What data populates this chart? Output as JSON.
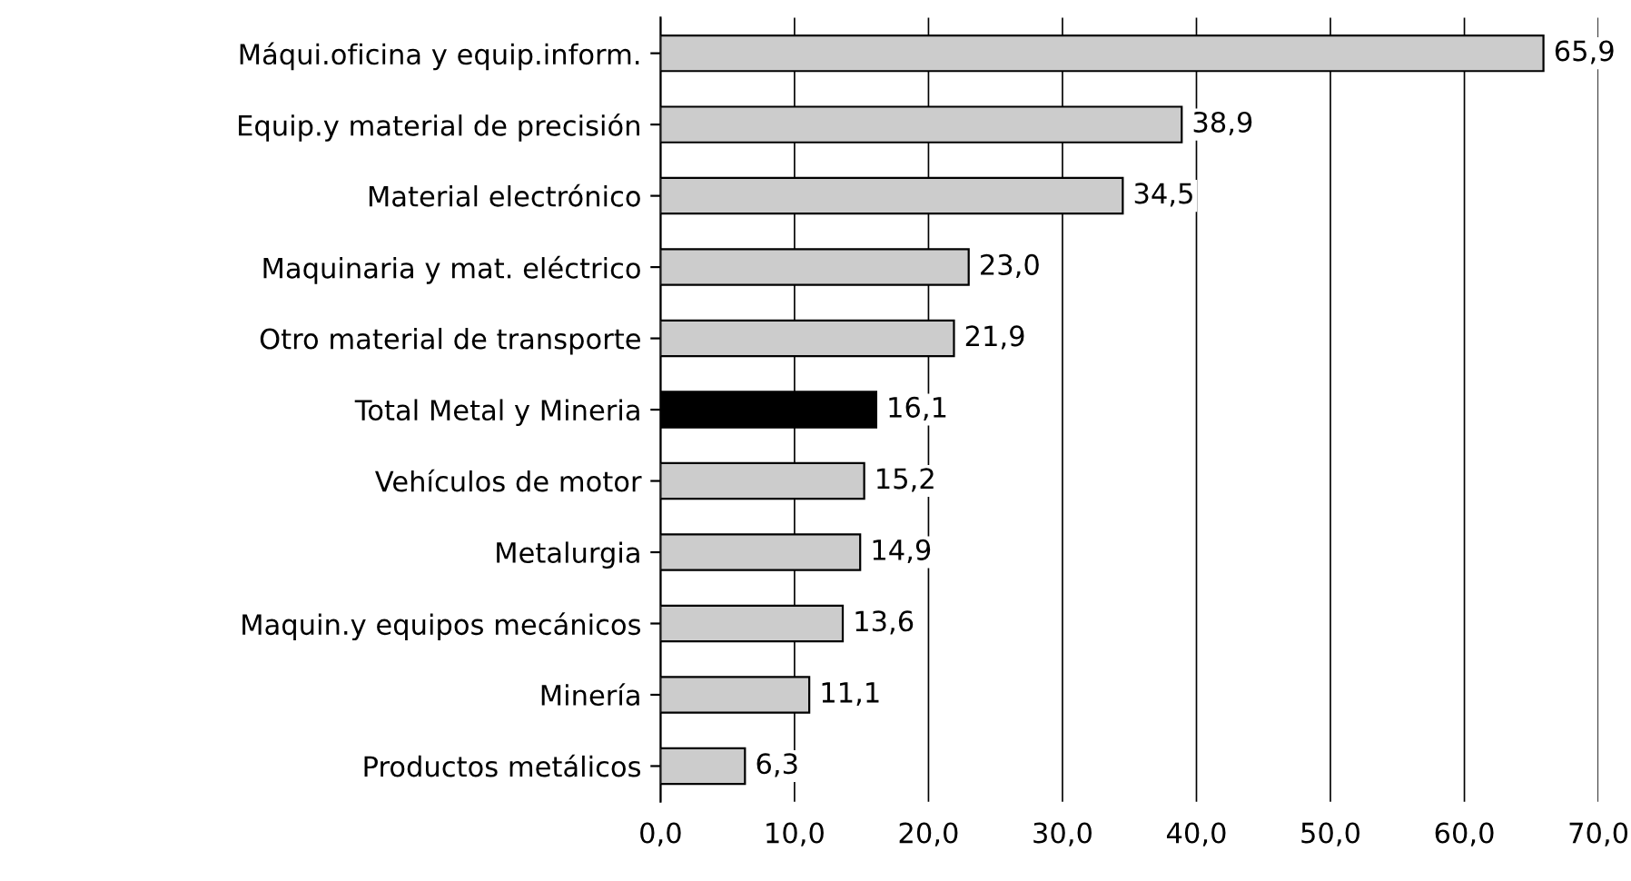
{
  "chart_data": {
    "type": "bar",
    "orientation": "horizontal",
    "categories": [
      "Máqui.oficina y equip.inform.",
      "Equip.y material de precisión",
      "Material electrónico",
      "Maquinaria y mat. eléctrico",
      "Otro material de transporte",
      "Total Metal y Mineria",
      "Vehículos de motor",
      "Metalurgia",
      "Maquin.y equipos mecánicos",
      "Minería",
      "Productos metálicos"
    ],
    "values": [
      65.9,
      38.9,
      34.5,
      23.0,
      21.9,
      16.1,
      15.2,
      14.9,
      13.6,
      11.1,
      6.3
    ],
    "value_labels": [
      "65,9",
      "38,9",
      "34,5",
      "23,0",
      "21,9",
      "16,1",
      "15,2",
      "14,9",
      "13,6",
      "11,1",
      "6,3"
    ],
    "colors": [
      "#cccccc",
      "#cccccc",
      "#cccccc",
      "#cccccc",
      "#cccccc",
      "#000000",
      "#cccccc",
      "#cccccc",
      "#cccccc",
      "#cccccc",
      "#cccccc"
    ],
    "xlim": [
      0,
      70
    ],
    "xticks": [
      {
        "value": 0,
        "label": "0,0"
      },
      {
        "value": 10,
        "label": "10,0"
      },
      {
        "value": 20,
        "label": "20,0"
      },
      {
        "value": 30,
        "label": "30,0"
      },
      {
        "value": 40,
        "label": "40,0"
      },
      {
        "value": 50,
        "label": "50,0"
      },
      {
        "value": 60,
        "label": "60,0"
      },
      {
        "value": 70,
        "label": "70,0"
      }
    ],
    "grid": "x"
  }
}
